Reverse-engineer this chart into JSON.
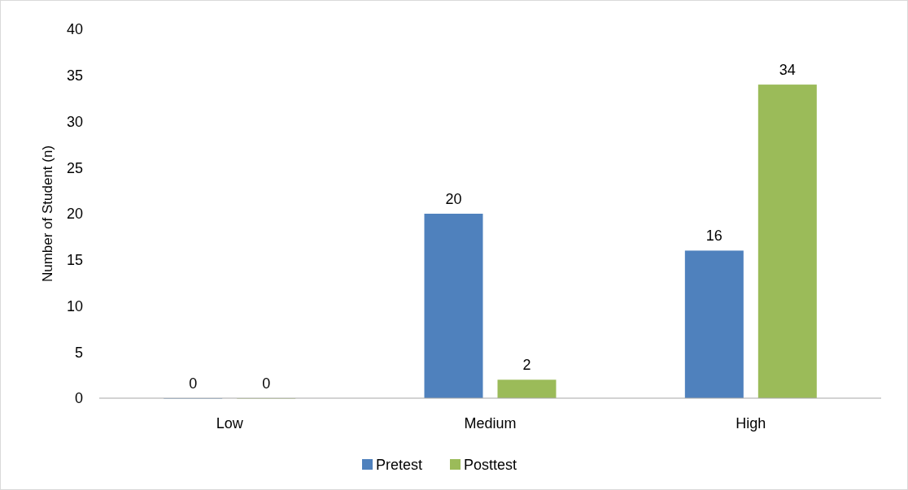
{
  "chart_data": {
    "type": "bar",
    "ylabel": "Number of Student (n)",
    "categories": [
      "Low",
      "Medium",
      "High"
    ],
    "series": [
      {
        "name": "Pretest",
        "color": "#4f81bd",
        "values": [
          0,
          20,
          16
        ]
      },
      {
        "name": "Posttest",
        "color": "#9bbb59",
        "values": [
          0,
          2,
          34
        ]
      }
    ],
    "ylim": [
      0,
      40
    ],
    "yticks": [
      0,
      5,
      10,
      15,
      20,
      25,
      30,
      35,
      40
    ],
    "grid": false,
    "legend": "bottom",
    "data_labels": true
  }
}
